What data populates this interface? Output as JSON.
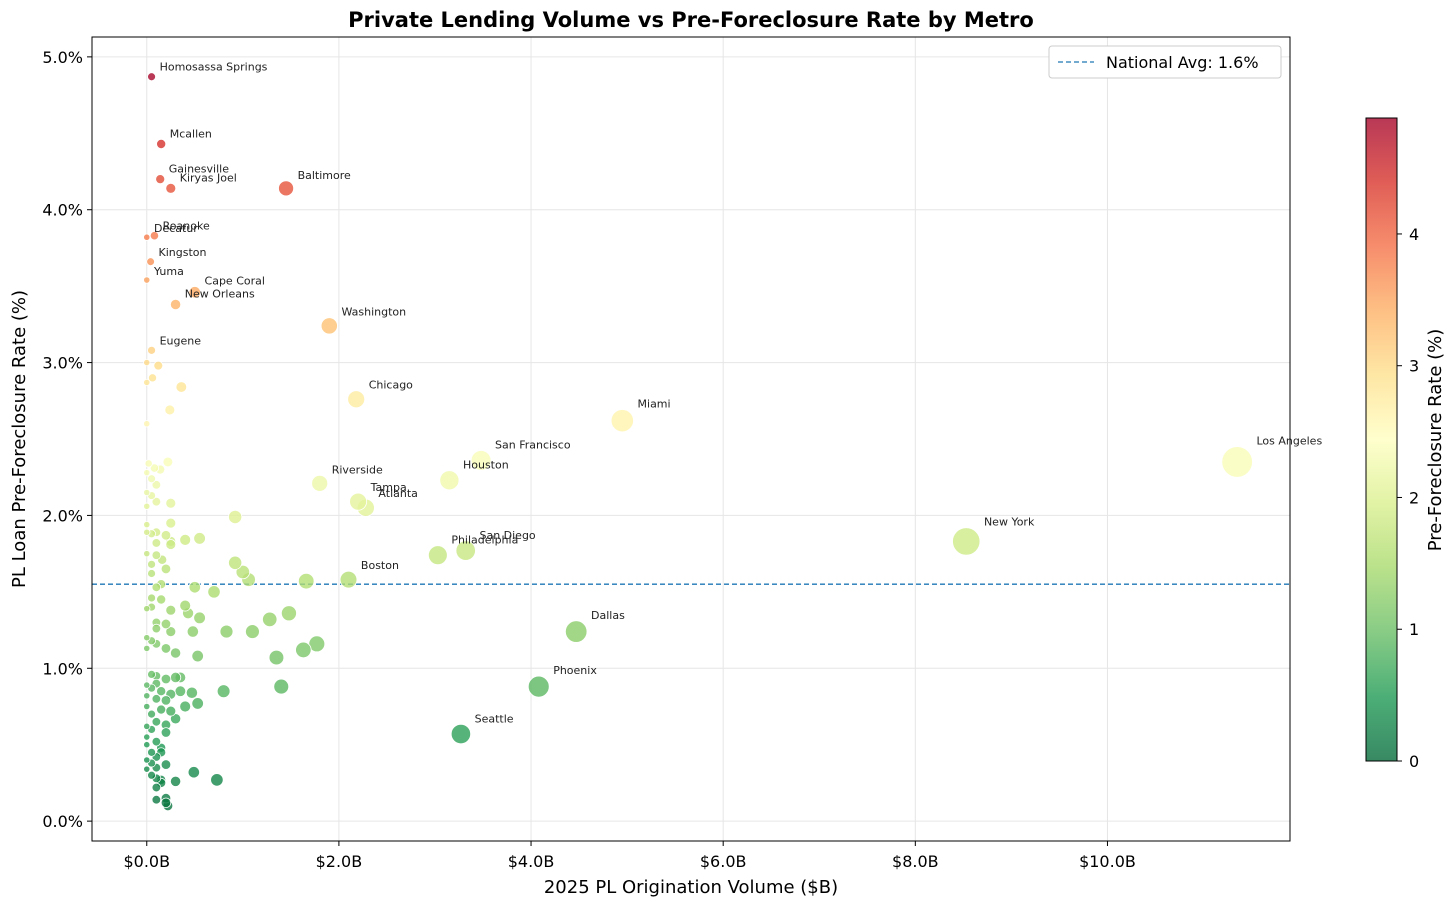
{
  "chart_data": {
    "type": "scatter",
    "title": "Private Lending Volume vs Pre-Foreclosure Rate by Metro",
    "xlabel": "2025 PL Origination Volume ($B)",
    "ylabel": "PL Loan Pre-Foreclosure Rate (%)",
    "xlim": [
      -0.57,
      11.9
    ],
    "ylim": [
      -0.13,
      5.13
    ],
    "x_ticks": [
      0,
      2,
      4,
      6,
      8,
      10
    ],
    "x_tick_labels": [
      "$0.0B",
      "$2.0B",
      "$4.0B",
      "$6.0B",
      "$8.0B",
      "$10.0B"
    ],
    "y_ticks": [
      0,
      1,
      2,
      3,
      4,
      5
    ],
    "y_tick_labels": [
      "0.0%",
      "1.0%",
      "2.0%",
      "3.0%",
      "4.0%",
      "5.0%"
    ],
    "grid": true,
    "legend": {
      "placement": "top-right",
      "label": "National Avg: 1.6%"
    },
    "reference_line": {
      "y": 1.55,
      "label": "National Avg: 1.6%",
      "color": "#1f77b4",
      "style": "dashed"
    },
    "colorbar": {
      "label": "Pre-Foreclosure Rate (%)",
      "range": [
        0,
        4.88
      ],
      "ticks": [
        0,
        1,
        2,
        3,
        4
      ],
      "tick_labels": [
        "0",
        "1",
        "2",
        "3",
        "4"
      ],
      "colormap": "RdYlGn_r"
    },
    "size_encodes": "origination volume",
    "labeled_points": [
      {
        "name": "Homosassa Springs",
        "x": 0.05,
        "y": 4.87
      },
      {
        "name": "Mcallen",
        "x": 0.15,
        "y": 4.43
      },
      {
        "name": "Gainesville",
        "x": 0.14,
        "y": 4.2
      },
      {
        "name": "Kiryas Joel",
        "x": 0.25,
        "y": 4.14
      },
      {
        "name": "Baltimore",
        "x": 1.45,
        "y": 4.14
      },
      {
        "name": "Roanoke",
        "x": 0.08,
        "y": 3.83
      },
      {
        "name": "Decatur",
        "x": 0.0,
        "y": 3.82
      },
      {
        "name": "Kingston",
        "x": 0.04,
        "y": 3.66
      },
      {
        "name": "Yuma",
        "x": 0.0,
        "y": 3.54
      },
      {
        "name": "Cape Coral",
        "x": 0.5,
        "y": 3.46
      },
      {
        "name": "New Orleans",
        "x": 0.3,
        "y": 3.38
      },
      {
        "name": "Washington",
        "x": 1.9,
        "y": 3.24
      },
      {
        "name": "Eugene",
        "x": 0.05,
        "y": 3.08
      },
      {
        "name": "Chicago",
        "x": 2.18,
        "y": 2.76
      },
      {
        "name": "Miami",
        "x": 4.95,
        "y": 2.62
      },
      {
        "name": "San Francisco",
        "x": 3.48,
        "y": 2.36
      },
      {
        "name": "Los Angeles",
        "x": 11.35,
        "y": 2.35
      },
      {
        "name": "Houston",
        "x": 3.15,
        "y": 2.23
      },
      {
        "name": "Riverside",
        "x": 1.8,
        "y": 2.21
      },
      {
        "name": "Tampa",
        "x": 2.2,
        "y": 2.09
      },
      {
        "name": "Atlanta",
        "x": 2.28,
        "y": 2.05
      },
      {
        "name": "New York",
        "x": 8.53,
        "y": 1.83
      },
      {
        "name": "San Diego",
        "x": 3.32,
        "y": 1.77
      },
      {
        "name": "Philadelphia",
        "x": 3.03,
        "y": 1.74
      },
      {
        "name": "Boston",
        "x": 2.1,
        "y": 1.58
      },
      {
        "name": "Dallas",
        "x": 4.47,
        "y": 1.24
      },
      {
        "name": "Phoenix",
        "x": 4.08,
        "y": 0.88
      },
      {
        "name": "Seattle",
        "x": 3.27,
        "y": 0.57
      }
    ],
    "unlabeled_points": [
      [
        0.0,
        3.0
      ],
      [
        0.0,
        2.87
      ],
      [
        0.06,
        2.9
      ],
      [
        0.12,
        2.98
      ],
      [
        0.36,
        2.84
      ],
      [
        0.24,
        2.69
      ],
      [
        0.0,
        2.6
      ],
      [
        0.02,
        2.34
      ],
      [
        0.08,
        2.31
      ],
      [
        0.14,
        2.3
      ],
      [
        0.22,
        2.35
      ],
      [
        0.0,
        2.28
      ],
      [
        0.05,
        2.24
      ],
      [
        0.1,
        2.2
      ],
      [
        0.0,
        2.15
      ],
      [
        0.05,
        2.13
      ],
      [
        0.25,
        2.08
      ],
      [
        0.0,
        2.06
      ],
      [
        0.1,
        2.09
      ],
      [
        0.0,
        1.94
      ],
      [
        0.25,
        1.95
      ],
      [
        0.1,
        1.89
      ],
      [
        0.2,
        1.87
      ],
      [
        0.0,
        1.89
      ],
      [
        0.05,
        1.88
      ],
      [
        0.1,
        1.82
      ],
      [
        0.25,
        1.83
      ],
      [
        0.4,
        1.84
      ],
      [
        0.55,
        1.85
      ],
      [
        0.92,
        1.99
      ],
      [
        0.25,
        1.81
      ],
      [
        0.0,
        1.75
      ],
      [
        0.1,
        1.74
      ],
      [
        0.16,
        1.71
      ],
      [
        0.05,
        1.68
      ],
      [
        0.2,
        1.65
      ],
      [
        0.92,
        1.69
      ],
      [
        1.0,
        1.63
      ],
      [
        1.06,
        1.58
      ],
      [
        0.05,
        1.62
      ],
      [
        0.15,
        1.55
      ],
      [
        0.1,
        1.53
      ],
      [
        0.5,
        1.53
      ],
      [
        0.7,
        1.5
      ],
      [
        1.66,
        1.57
      ],
      [
        0.05,
        1.46
      ],
      [
        0.15,
        1.45
      ],
      [
        0.0,
        1.39
      ],
      [
        0.05,
        1.4
      ],
      [
        0.25,
        1.38
      ],
      [
        0.4,
        1.41
      ],
      [
        0.43,
        1.36
      ],
      [
        0.55,
        1.33
      ],
      [
        1.28,
        1.32
      ],
      [
        1.48,
        1.36
      ],
      [
        0.1,
        1.3
      ],
      [
        0.2,
        1.29
      ],
      [
        0.1,
        1.26
      ],
      [
        0.25,
        1.24
      ],
      [
        0.48,
        1.24
      ],
      [
        0.83,
        1.24
      ],
      [
        1.1,
        1.24
      ],
      [
        0.0,
        1.2
      ],
      [
        0.05,
        1.18
      ],
      [
        0.1,
        1.16
      ],
      [
        0.0,
        1.13
      ],
      [
        0.2,
        1.13
      ],
      [
        0.3,
        1.1
      ],
      [
        0.53,
        1.08
      ],
      [
        1.35,
        1.07
      ],
      [
        1.63,
        1.12
      ],
      [
        1.77,
        1.16
      ],
      [
        0.05,
        0.96
      ],
      [
        0.1,
        0.95
      ],
      [
        0.2,
        0.93
      ],
      [
        0.3,
        0.94
      ],
      [
        0.35,
        0.94
      ],
      [
        0.0,
        0.89
      ],
      [
        0.05,
        0.87
      ],
      [
        0.1,
        0.9
      ],
      [
        0.15,
        0.85
      ],
      [
        0.25,
        0.83
      ],
      [
        0.35,
        0.85
      ],
      [
        0.47,
        0.84
      ],
      [
        0.8,
        0.85
      ],
      [
        1.4,
        0.88
      ],
      [
        0.0,
        0.82
      ],
      [
        0.1,
        0.8
      ],
      [
        0.2,
        0.79
      ],
      [
        0.15,
        0.73
      ],
      [
        0.25,
        0.72
      ],
      [
        0.4,
        0.75
      ],
      [
        0.53,
        0.77
      ],
      [
        0.0,
        0.75
      ],
      [
        0.05,
        0.7
      ],
      [
        0.1,
        0.65
      ],
      [
        0.2,
        0.63
      ],
      [
        0.3,
        0.67
      ],
      [
        0.0,
        0.62
      ],
      [
        0.05,
        0.6
      ],
      [
        0.2,
        0.58
      ],
      [
        0.0,
        0.55
      ],
      [
        0.1,
        0.52
      ],
      [
        0.15,
        0.48
      ],
      [
        0.0,
        0.5
      ],
      [
        0.05,
        0.45
      ],
      [
        0.1,
        0.42
      ],
      [
        0.15,
        0.45
      ],
      [
        0.0,
        0.4
      ],
      [
        0.05,
        0.38
      ],
      [
        0.1,
        0.35
      ],
      [
        0.2,
        0.37
      ],
      [
        0.0,
        0.34
      ],
      [
        0.05,
        0.3
      ],
      [
        0.1,
        0.28
      ],
      [
        0.15,
        0.27
      ],
      [
        0.3,
        0.26
      ],
      [
        0.49,
        0.32
      ],
      [
        0.73,
        0.27
      ],
      [
        0.1,
        0.22
      ],
      [
        0.15,
        0.25
      ],
      [
        0.2,
        0.15
      ],
      [
        0.1,
        0.14
      ],
      [
        0.2,
        0.12
      ],
      [
        0.22,
        0.1
      ]
    ]
  }
}
